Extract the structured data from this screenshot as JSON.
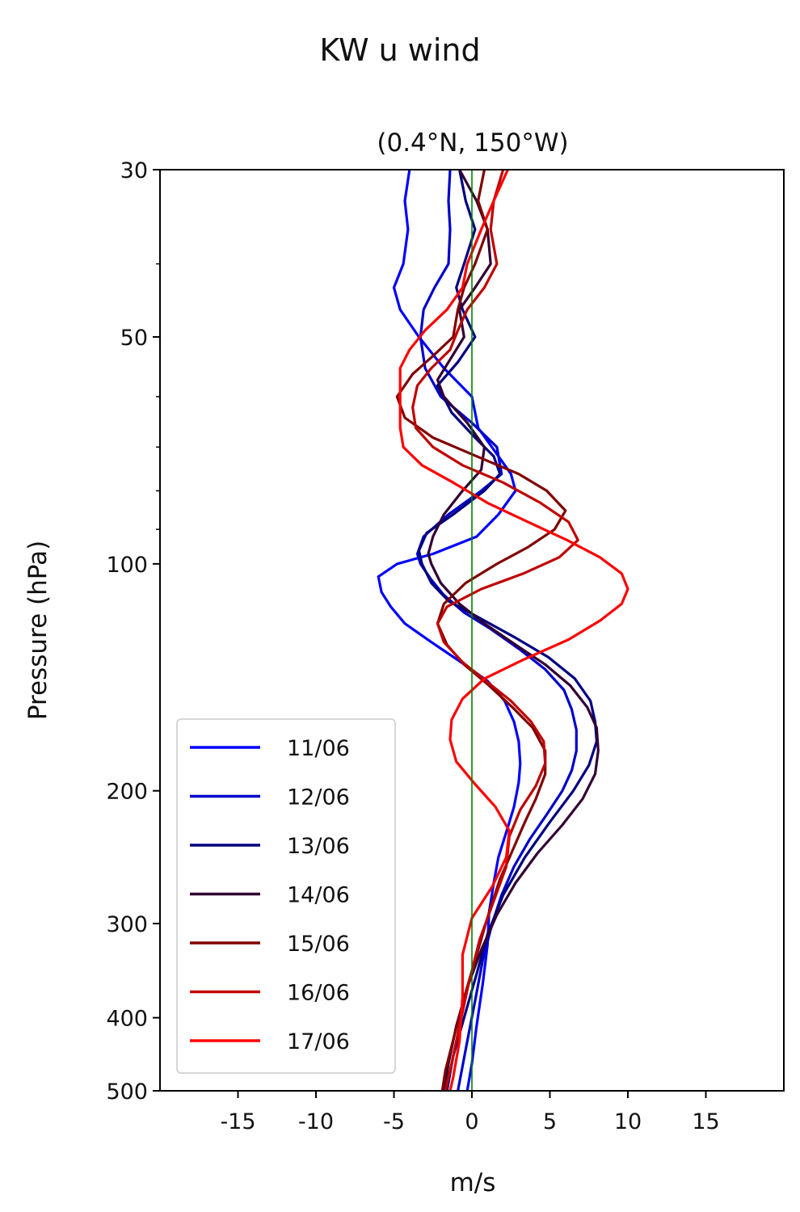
{
  "chart_data": {
    "type": "line",
    "title": "KW u wind",
    "subtitle": "(0.4°N, 150°W)",
    "xlabel": "m/s",
    "ylabel": "Pressure (hPa)",
    "xlim": [
      -20,
      20
    ],
    "ylim": [
      500,
      30
    ],
    "yscale": "log",
    "xticks": [
      -15,
      -10,
      -5,
      0,
      5,
      10,
      15
    ],
    "xtick_labels": [
      "-15",
      "-10",
      "-5",
      "0",
      "5",
      "10",
      "15"
    ],
    "yticks": [
      30,
      50,
      100,
      200,
      300,
      400,
      500
    ],
    "ytick_labels": [
      "30",
      "50",
      "100",
      "200",
      "300",
      "400",
      "500"
    ],
    "grid": false,
    "legend_position": "bottom-left",
    "reference_line": {
      "x": 0,
      "color": "#008000"
    },
    "series": [
      {
        "name": "11/06",
        "color": "#0000ff",
        "p": [
          30,
          33,
          36,
          40,
          43,
          46,
          50,
          55,
          60,
          66,
          72,
          76,
          80,
          86,
          92,
          97,
          100,
          104,
          109,
          114,
          120,
          127,
          135,
          143,
          152,
          162,
          172,
          184,
          195,
          210,
          227,
          245,
          265,
          290,
          320,
          360,
          410,
          460,
          500
        ],
        "u": [
          -4.0,
          -4.3,
          -4.1,
          -4.4,
          -5.0,
          -4.6,
          -3.4,
          -1.8,
          0.0,
          0.4,
          1.7,
          2.5,
          2.8,
          1.7,
          0.3,
          -2.5,
          -4.8,
          -6.0,
          -5.8,
          -5.2,
          -4.3,
          -2.6,
          -0.7,
          1.0,
          2.1,
          2.7,
          3.0,
          3.1,
          3.0,
          2.7,
          2.2,
          1.7,
          1.4,
          1.1,
          1.0,
          0.7,
          0.3,
          0.0,
          -0.3
        ]
      },
      {
        "name": "12/06",
        "color": "#0000cc",
        "p": [
          30,
          33,
          36,
          40,
          43,
          46,
          50,
          55,
          60,
          65,
          70,
          76,
          80,
          86,
          92,
          97,
          100,
          105,
          110,
          116,
          122,
          130,
          138,
          147,
          156,
          166,
          177,
          188,
          200,
          215,
          232,
          252,
          275,
          300,
          335,
          380,
          430,
          500
        ],
        "u": [
          -1.4,
          -1.5,
          -1.4,
          -1.5,
          -2.4,
          -3.1,
          -3.3,
          -3.0,
          -2.0,
          0.0,
          1.6,
          1.9,
          0.6,
          -1.5,
          -3.1,
          -3.5,
          -3.3,
          -2.6,
          -1.8,
          -0.5,
          1.2,
          3.1,
          4.7,
          5.9,
          6.4,
          6.7,
          6.7,
          6.4,
          5.8,
          4.8,
          3.7,
          2.7,
          1.9,
          1.3,
          0.7,
          0.2,
          -0.3,
          -0.9
        ]
      },
      {
        "name": "13/06",
        "color": "#000080",
        "p": [
          30,
          33,
          36,
          40,
          43,
          46,
          50,
          54,
          58,
          63,
          68,
          72,
          76,
          80,
          86,
          91,
          96,
          100,
          106,
          112,
          118,
          125,
          133,
          142,
          152,
          162,
          172,
          185,
          200,
          220,
          245,
          275,
          310,
          350,
          400,
          450,
          500
        ],
        "u": [
          -0.8,
          -0.4,
          0.2,
          -0.5,
          -1.0,
          -0.6,
          0.2,
          -0.9,
          -2.2,
          -1.3,
          0.2,
          1.4,
          1.8,
          0.8,
          -1.2,
          -2.9,
          -3.4,
          -3.2,
          -2.6,
          -1.5,
          0.5,
          2.7,
          4.9,
          6.6,
          7.6,
          7.9,
          8.0,
          7.5,
          6.5,
          5.0,
          3.4,
          2.0,
          1.0,
          0.3,
          -0.5,
          -1.2,
          -1.6
        ]
      },
      {
        "name": "14/06",
        "color": "#330033",
        "p": [
          30,
          33,
          36,
          40,
          43,
          46,
          50,
          54,
          57,
          60,
          65,
          70,
          75,
          80,
          86,
          92,
          97,
          100,
          106,
          113,
          120,
          128,
          136,
          145,
          155,
          165,
          177,
          190,
          205,
          222,
          242,
          265,
          292,
          325,
          365,
          410,
          460,
          500
        ],
        "u": [
          -0.8,
          0.3,
          1.0,
          1.2,
          0.2,
          -0.8,
          -0.5,
          -1.5,
          -2.2,
          -1.8,
          -0.3,
          0.8,
          0.6,
          -0.6,
          -1.8,
          -2.5,
          -2.8,
          -2.6,
          -2.0,
          -0.8,
          0.8,
          2.8,
          4.7,
          6.3,
          7.4,
          8.0,
          8.1,
          7.9,
          7.1,
          5.8,
          4.2,
          2.8,
          1.6,
          0.6,
          -0.3,
          -1.0,
          -1.5,
          -1.8
        ]
      },
      {
        "name": "15/06",
        "color": "#800000",
        "p": [
          30,
          33,
          36,
          40,
          43,
          46,
          50,
          53,
          56,
          60,
          64,
          68,
          72,
          76,
          80,
          85,
          90,
          95,
          100,
          106,
          113,
          120,
          128,
          136,
          145,
          155,
          165,
          177,
          190,
          205,
          220,
          240,
          262,
          290,
          325,
          370,
          420,
          470,
          500
        ],
        "u": [
          0.8,
          0.4,
          1.0,
          0.2,
          -0.5,
          -0.9,
          -1.2,
          -2.5,
          -3.8,
          -4.8,
          -4.3,
          -2.5,
          0.3,
          3.0,
          4.8,
          6.0,
          5.3,
          3.6,
          1.6,
          -0.4,
          -1.8,
          -2.2,
          -1.6,
          -0.5,
          1.1,
          2.6,
          3.9,
          4.7,
          4.7,
          4.1,
          3.4,
          2.6,
          1.8,
          1.1,
          0.4,
          -0.4,
          -1.1,
          -1.7,
          -1.9
        ]
      },
      {
        "name": "16/06",
        "color": "#c00000",
        "p": [
          30,
          33,
          36,
          40,
          43,
          46,
          49,
          52,
          55,
          58,
          62,
          66,
          70,
          74,
          78,
          83,
          88,
          93,
          98,
          103,
          108,
          114,
          120,
          127,
          135,
          143,
          152,
          162,
          172,
          184,
          197,
          212,
          230,
          252,
          280,
          315,
          360,
          410,
          460,
          500
        ],
        "u": [
          2.0,
          1.4,
          1.2,
          1.6,
          0.8,
          -0.3,
          -0.9,
          -1.4,
          -2.6,
          -3.5,
          -3.8,
          -3.6,
          -2.5,
          -0.6,
          2.0,
          4.4,
          6.2,
          6.8,
          5.6,
          3.3,
          0.6,
          -1.6,
          -2.2,
          -1.8,
          -0.6,
          0.9,
          2.5,
          3.8,
          4.6,
          4.7,
          4.1,
          3.1,
          2.4,
          2.2,
          1.4,
          0.5,
          -0.2,
          -0.8,
          -1.3,
          -1.7
        ]
      },
      {
        "name": "17/06",
        "color": "#ff0000",
        "p": [
          30,
          33,
          36,
          40,
          43,
          46,
          49,
          52,
          55,
          58,
          62,
          66,
          70,
          74,
          78,
          83,
          88,
          93,
          98,
          103,
          108,
          113,
          119,
          126,
          134,
          142,
          151,
          161,
          171,
          183,
          196,
          210,
          226,
          245,
          268,
          295,
          330,
          375,
          430,
          480,
          500
        ],
        "u": [
          2.3,
          1.4,
          0.6,
          -0.3,
          -0.6,
          -1.6,
          -3.0,
          -4.0,
          -4.6,
          -4.6,
          -4.6,
          -4.6,
          -4.4,
          -3.2,
          -1.2,
          1.0,
          3.6,
          6.1,
          8.2,
          9.6,
          10.0,
          9.6,
          8.2,
          6.2,
          3.3,
          0.8,
          -0.6,
          -1.3,
          -1.4,
          -1.0,
          0.2,
          1.5,
          2.4,
          2.2,
          1.3,
          0.0,
          -0.6,
          -0.6,
          -0.8,
          -1.2,
          -1.4
        ]
      }
    ]
  }
}
